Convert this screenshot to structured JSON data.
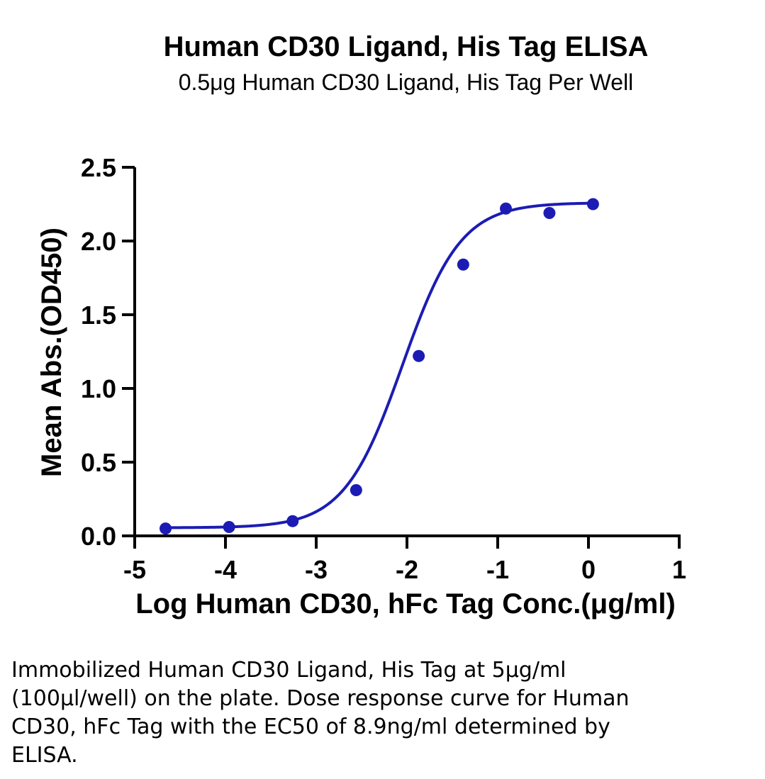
{
  "chart_data": {
    "type": "scatter",
    "title": "Human CD30 Ligand, His Tag ELISA",
    "subtitle": "0.5μg Human CD30 Ligand, His Tag Per Well",
    "xlabel": "Log Human CD30, hFc Tag Conc.(μg/ml)",
    "ylabel": "Mean Abs.(OD450)",
    "xlim": [
      -5,
      1
    ],
    "ylim": [
      0,
      2.5
    ],
    "x_ticks": [
      "-5",
      "-4",
      "-3",
      "-2",
      "-1",
      "0",
      "1"
    ],
    "y_ticks": [
      "0.0",
      "0.5",
      "1.0",
      "1.5",
      "2.0",
      "2.5"
    ],
    "grid": false,
    "color": "#1c1cb4",
    "series": [
      {
        "x": [
          -4.66,
          -3.96,
          -3.26,
          -2.56,
          -1.87,
          -1.38,
          -0.91,
          -0.43,
          0.05
        ],
        "y": [
          0.05,
          0.06,
          0.1,
          0.31,
          1.22,
          1.84,
          2.22,
          2.19,
          2.25
        ]
      }
    ],
    "fit_curve": {
      "model": "4PL",
      "bottom": 0.055,
      "top": 2.26,
      "log_ec50": -2.05,
      "hill_slope": 1.35
    }
  },
  "caption": "Immobilized Human CD30 Ligand, His Tag at 5μg/ml (100μl/well) on the plate. Dose response curve for Human CD30, hFc Tag with the EC50 of 8.9ng/ml determined by ELISA."
}
